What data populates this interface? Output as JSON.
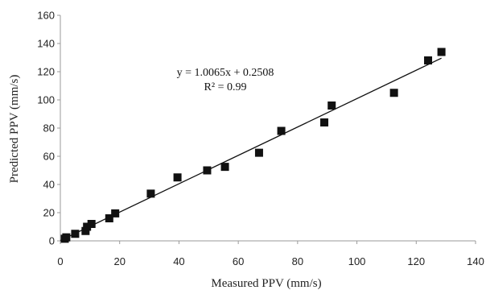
{
  "chart_data": {
    "type": "scatter",
    "title": "",
    "xlabel": "Measured PPV (mm/s)",
    "ylabel": "Predicted PPV (mm/s)",
    "xlim": [
      0,
      140
    ],
    "ylim": [
      0,
      160
    ],
    "xticks": [
      0,
      20,
      40,
      60,
      80,
      100,
      120,
      140
    ],
    "yticks": [
      0,
      20,
      40,
      60,
      80,
      100,
      120,
      140,
      160
    ],
    "grid": false,
    "legend": "none",
    "marker": "square",
    "marker_color": "#111111",
    "series": [
      {
        "points": [
          {
            "x": 1.5,
            "y": 1.5
          },
          {
            "x": 2,
            "y": 2.5
          },
          {
            "x": 5,
            "y": 5
          },
          {
            "x": 8.5,
            "y": 7
          },
          {
            "x": 9,
            "y": 10
          },
          {
            "x": 10.5,
            "y": 12
          },
          {
            "x": 16.5,
            "y": 16
          },
          {
            "x": 18.5,
            "y": 19.5
          },
          {
            "x": 30.5,
            "y": 33.5
          },
          {
            "x": 39.5,
            "y": 45
          },
          {
            "x": 49.5,
            "y": 50
          },
          {
            "x": 55.5,
            "y": 52.5
          },
          {
            "x": 67,
            "y": 62.5
          },
          {
            "x": 74.5,
            "y": 78
          },
          {
            "x": 89,
            "y": 84
          },
          {
            "x": 91.5,
            "y": 96
          },
          {
            "x": 112.5,
            "y": 105
          },
          {
            "x": 124,
            "y": 128
          },
          {
            "x": 128.5,
            "y": 134
          }
        ]
      }
    ],
    "trendline": {
      "slope": 1.0065,
      "intercept": 0.2508,
      "x_range": [
        0,
        128.5
      ]
    },
    "annotations": {
      "equation": "y = 1.0065x + 0.2508",
      "r_squared": "R² = 0.99"
    }
  }
}
